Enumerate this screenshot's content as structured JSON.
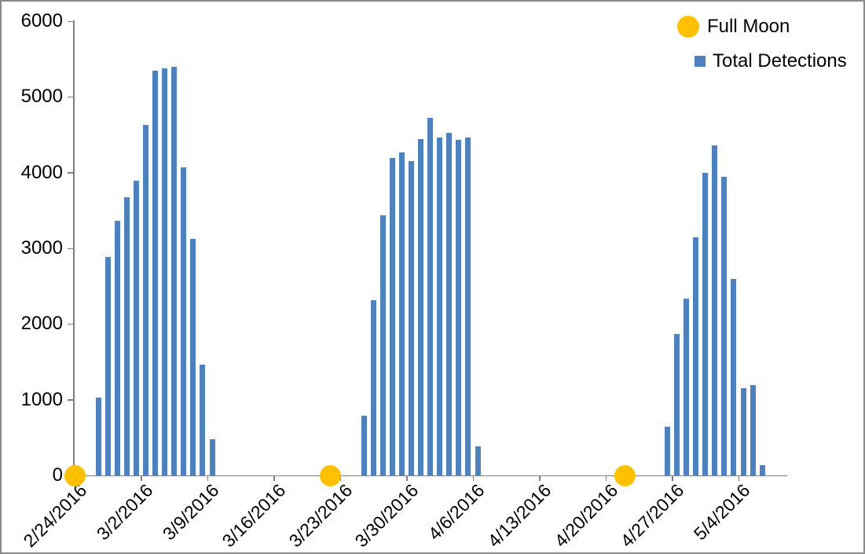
{
  "chart_data": {
    "type": "bar",
    "title": "",
    "grid": "off",
    "legend": {
      "position": "top-right",
      "entries": [
        {
          "label": "Full Moon",
          "marker": "circle",
          "color": "#FFC000"
        },
        {
          "label": "Total Detections",
          "marker": "square",
          "color": "#4F81BD"
        }
      ]
    },
    "x_axis": {
      "type": "date",
      "range": [
        "2/24/2016",
        "5/9/2016"
      ],
      "tick_labels": [
        "2/24/2016",
        "3/2/2016",
        "3/9/2016",
        "3/16/2016",
        "3/23/2016",
        "3/30/2016",
        "4/6/2016",
        "4/13/2016",
        "4/20/2016",
        "4/27/2016",
        "5/4/2016"
      ]
    },
    "y_axis": {
      "min": 0,
      "max": 6000,
      "step": 1000,
      "tick_labels": [
        "0",
        "1000",
        "2000",
        "3000",
        "4000",
        "5000",
        "6000"
      ]
    },
    "axis_color": "#808080",
    "series": [
      {
        "name": "Total Detections",
        "type": "bar",
        "color": "#4F81BD",
        "dates": [
          "2/26/2016",
          "2/27/2016",
          "2/28/2016",
          "2/29/2016",
          "3/1/2016",
          "3/2/2016",
          "3/3/2016",
          "3/4/2016",
          "3/5/2016",
          "3/6/2016",
          "3/7/2016",
          "3/8/2016",
          "3/9/2016",
          "3/25/2016",
          "3/26/2016",
          "3/27/2016",
          "3/28/2016",
          "3/29/2016",
          "3/30/2016",
          "3/31/2016",
          "4/1/2016",
          "4/2/2016",
          "4/3/2016",
          "4/4/2016",
          "4/5/2016",
          "4/6/2016",
          "4/26/2016",
          "4/27/2016",
          "4/28/2016",
          "4/29/2016",
          "4/30/2016",
          "5/1/2016",
          "5/2/2016",
          "5/3/2016",
          "5/4/2016",
          "5/5/2016",
          "5/6/2016"
        ],
        "values": [
          1030,
          2890,
          3360,
          3670,
          3890,
          4630,
          5350,
          5380,
          5400,
          4070,
          3120,
          1460,
          480,
          790,
          2320,
          3440,
          4190,
          4270,
          4150,
          4440,
          4720,
          4460,
          4530,
          4430,
          4460,
          380,
          640,
          1870,
          2340,
          3150,
          4000,
          4360,
          3940,
          2600,
          1150,
          1190,
          130
        ]
      },
      {
        "name": "Full Moon",
        "type": "scatter",
        "marker": "circle",
        "color": "#FFC000",
        "dates": [
          "2/24/2016",
          "3/22/2016",
          "4/22/2016"
        ],
        "values": [
          0,
          0,
          0
        ]
      }
    ]
  }
}
